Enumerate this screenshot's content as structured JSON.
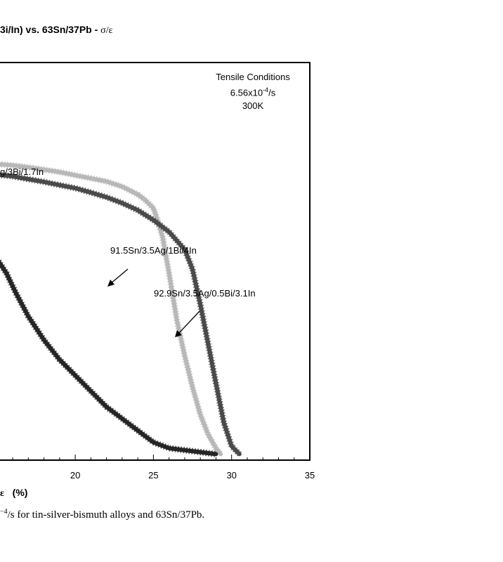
{
  "title": {
    "visible_text": "3i/In) vs. 63Sn/37Pb - ",
    "sigma_eps": "σ/ε"
  },
  "caption": {
    "pre": "",
    "exp": "−4",
    "text": "/s for tin-silver-bismuth alloys and 63Sn/37Pb."
  },
  "chart_data": {
    "type": "line",
    "title": "",
    "xlabel_symbol": "ε",
    "xlabel_unit": "(%)",
    "ylabel": "",
    "x_ticks": [
      20,
      25,
      30,
      35
    ],
    "x_visible_range": [
      15.1,
      35
    ],
    "tensile_conditions": {
      "heading": "Tensile Conditions",
      "rate_base": "6.56x10",
      "rate_exp": "-4",
      "rate_unit": "/s",
      "temperature": "300K"
    },
    "labels": {
      "partial_alloy": "g/3Bi/1.7In",
      "alloy_a": "91.5Sn/3.5Ag/1Bi/4In",
      "alloy_b": "92.9Sn/3.5Ag/0.5Bi/3.1In"
    },
    "series": [
      {
        "label_ref": "alloy_a",
        "color": "#b8b8b8",
        "x": [
          15.1,
          16,
          17,
          18,
          19,
          20,
          21,
          22,
          23,
          24,
          24.5,
          25,
          25.3,
          25.6,
          26,
          26.5,
          27,
          27.5,
          28,
          28.5,
          29,
          29.3
        ],
        "y": [
          0.747,
          0.744,
          0.739,
          0.733,
          0.727,
          0.719,
          0.711,
          0.703,
          0.69,
          0.67,
          0.655,
          0.635,
          0.6,
          0.56,
          0.47,
          0.35,
          0.26,
          0.18,
          0.11,
          0.06,
          0.025,
          0.01
        ]
      },
      {
        "label_ref": "alloy_b",
        "color": "#4a4a4a",
        "x": [
          15.1,
          16,
          17,
          18,
          19,
          20,
          21,
          22,
          23,
          24,
          25,
          26,
          27,
          27.5,
          28,
          28.5,
          29,
          29.5,
          30,
          30.5
        ],
        "y": [
          0.72,
          0.716,
          0.709,
          0.702,
          0.694,
          0.686,
          0.675,
          0.663,
          0.648,
          0.63,
          0.605,
          0.575,
          0.53,
          0.48,
          0.39,
          0.29,
          0.19,
          0.09,
          0.03,
          0.01
        ]
      },
      {
        "label_ref": "63Sn/37Pb",
        "color": "#262626",
        "x": [
          15.1,
          15.6,
          16.2,
          17,
          18,
          19,
          20,
          21,
          22,
          23,
          24,
          25,
          26,
          27,
          28,
          29
        ],
        "y": [
          0.5,
          0.47,
          0.42,
          0.36,
          0.3,
          0.25,
          0.21,
          0.17,
          0.13,
          0.1,
          0.07,
          0.04,
          0.025,
          0.02,
          0.015,
          0.01
        ]
      }
    ]
  }
}
